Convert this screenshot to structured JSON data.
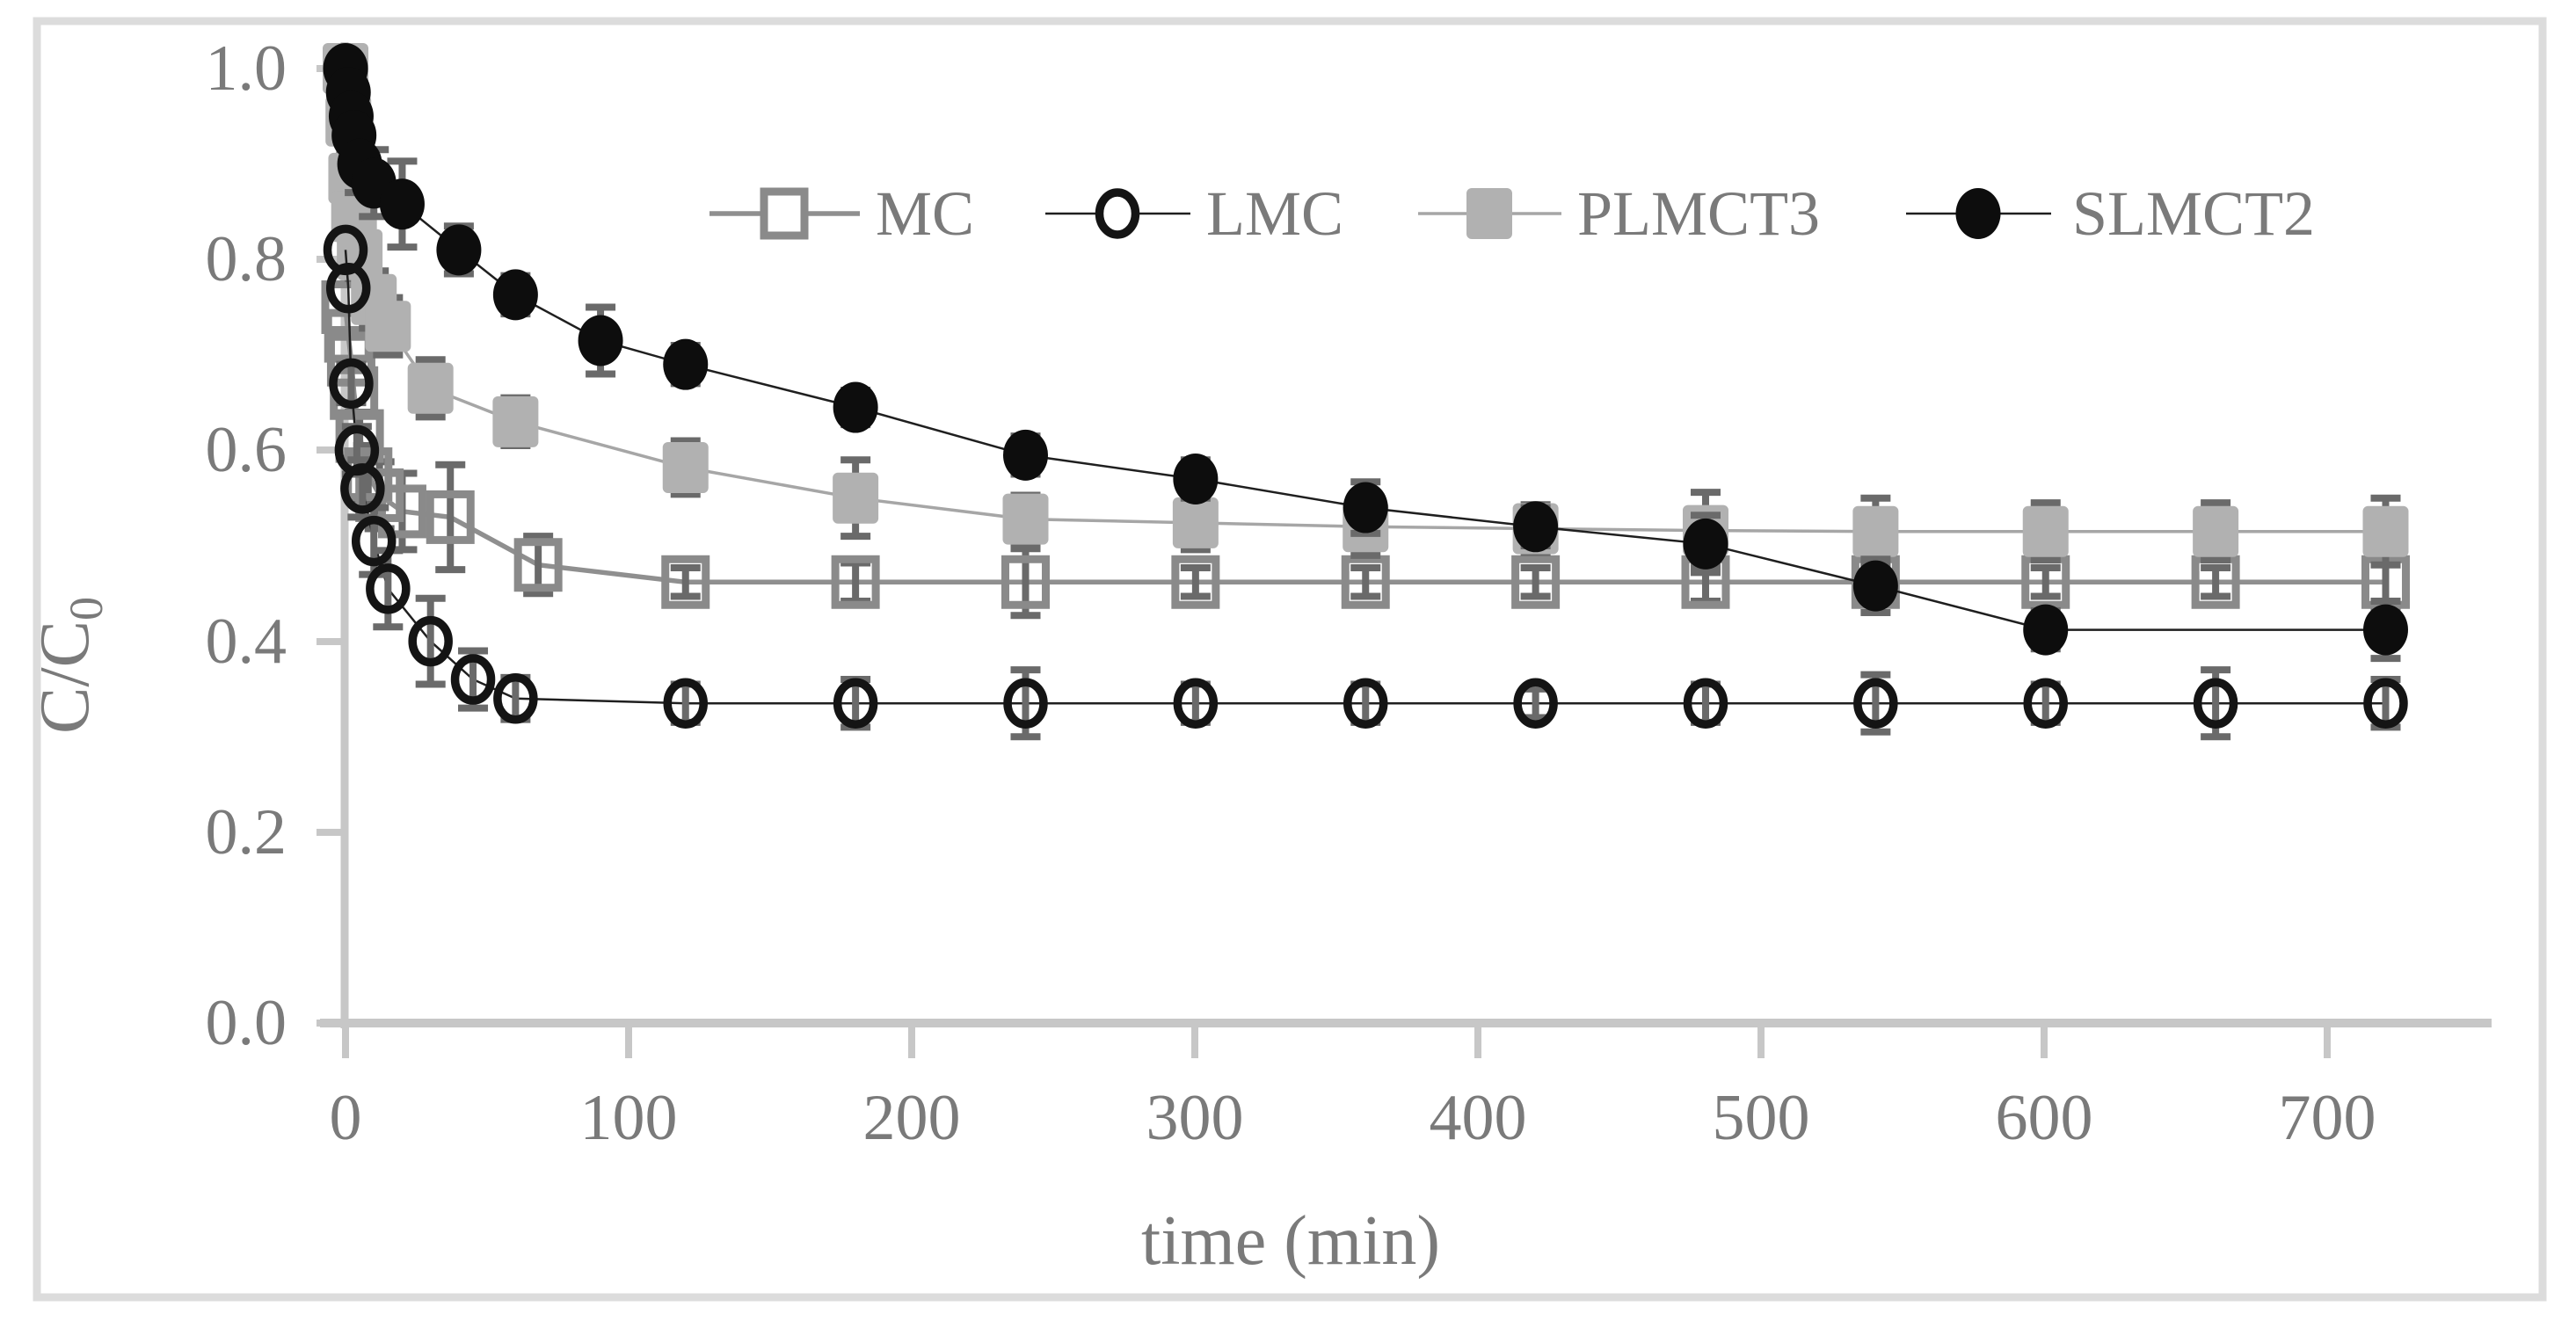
{
  "chart_data": {
    "type": "scatter",
    "title": "",
    "xlabel": "time (min)",
    "ylabel": "C/C0",
    "ylabel_main": "C/C",
    "ylabel_sub": "0",
    "xlim": [
      -10,
      755
    ],
    "ylim": [
      0.0,
      1.05
    ],
    "xticks": [
      0,
      100,
      200,
      300,
      400,
      500,
      600,
      700
    ],
    "ytick_labels": [
      "1.0",
      "0.8",
      "0.6",
      "0.4",
      "0.2",
      "0.0"
    ],
    "grid": false,
    "legend_position": "top-center",
    "error_bar_color": "#6a6a6a",
    "axis_color": "#c7c7c7",
    "frame_color": "#dcdcdc",
    "text_color": "#7a7a7a",
    "z_order": [
      0,
      2,
      1,
      3
    ],
    "series": [
      {
        "name": "MC",
        "marker": "open-square",
        "color": "#8a8a8a",
        "line_color": "#8f8f8f",
        "line_width": 5.5,
        "points_format": "[time_min, C_over_C0, error]",
        "points": [
          [
            0,
            0.75,
            0
          ],
          [
            1,
            0.72,
            0
          ],
          [
            2,
            0.695,
            0
          ],
          [
            3,
            0.66,
            0
          ],
          [
            5,
            0.615,
            0.025
          ],
          [
            8,
            0.575,
            0.03
          ],
          [
            12,
            0.553,
            0.035
          ],
          [
            20,
            0.536,
            0.04
          ],
          [
            37,
            0.53,
            0.055
          ],
          [
            68,
            0.48,
            0.03
          ],
          [
            120,
            0.462,
            0.015
          ],
          [
            180,
            0.462,
            0.02
          ],
          [
            240,
            0.462,
            0.035
          ],
          [
            300,
            0.462,
            0.015
          ],
          [
            360,
            0.462,
            0.015
          ],
          [
            420,
            0.462,
            0.015
          ],
          [
            480,
            0.462,
            0.02
          ],
          [
            540,
            0.462,
            0.02
          ],
          [
            600,
            0.462,
            0.015
          ],
          [
            660,
            0.462,
            0.015
          ],
          [
            720,
            0.462,
            0.03
          ]
        ]
      },
      {
        "name": "LMC",
        "marker": "open-circle",
        "color": "#141414",
        "line_color": "#1f1f1f",
        "line_width": 2.5,
        "points_format": "[time_min, C_over_C0, error]",
        "points": [
          [
            0,
            0.81,
            0
          ],
          [
            1,
            0.77,
            0
          ],
          [
            2,
            0.67,
            0.02
          ],
          [
            4,
            0.6,
            0.025
          ],
          [
            6,
            0.56,
            0.03
          ],
          [
            10,
            0.505,
            0.035
          ],
          [
            15,
            0.455,
            0.04
          ],
          [
            30,
            0.4,
            0.045
          ],
          [
            45,
            0.36,
            0.03
          ],
          [
            60,
            0.34,
            0.022
          ],
          [
            120,
            0.335,
            0.02
          ],
          [
            180,
            0.335,
            0.025
          ],
          [
            240,
            0.335,
            0.035
          ],
          [
            300,
            0.335,
            0.02
          ],
          [
            360,
            0.335,
            0.02
          ],
          [
            420,
            0.335,
            0.015
          ],
          [
            480,
            0.335,
            0.02
          ],
          [
            540,
            0.335,
            0.03
          ],
          [
            600,
            0.335,
            0.02
          ],
          [
            660,
            0.335,
            0.035
          ],
          [
            720,
            0.335,
            0.025
          ]
        ]
      },
      {
        "name": "PLMCT3",
        "marker": "filled-square",
        "color": "#b1b1b1",
        "line_color": "#a6a6a6",
        "line_width": 3.5,
        "points_format": "[time_min, C_over_C0, error]",
        "points": [
          [
            0,
            1.0,
            0
          ],
          [
            1,
            0.945,
            0
          ],
          [
            2,
            0.885,
            0.025
          ],
          [
            3,
            0.845,
            0.02
          ],
          [
            5,
            0.805,
            0.025
          ],
          [
            10,
            0.758,
            0.03
          ],
          [
            15,
            0.73,
            0.03
          ],
          [
            30,
            0.665,
            0.03
          ],
          [
            60,
            0.63,
            0.025
          ],
          [
            120,
            0.582,
            0.028
          ],
          [
            180,
            0.55,
            0.04
          ],
          [
            240,
            0.528,
            0.025
          ],
          [
            300,
            0.524,
            0.028
          ],
          [
            360,
            0.52,
            0.03
          ],
          [
            420,
            0.518,
            0.025
          ],
          [
            480,
            0.516,
            0.04
          ],
          [
            540,
            0.515,
            0.035
          ],
          [
            600,
            0.515,
            0.03
          ],
          [
            660,
            0.515,
            0.03
          ],
          [
            720,
            0.515,
            0.035
          ]
        ]
      },
      {
        "name": "SLMCT2",
        "marker": "filled-circle",
        "color": "#0d0d0d",
        "line_color": "#1f1f1f",
        "line_width": 2.5,
        "points_format": "[time_min, C_over_C0, error]",
        "points": [
          [
            0,
            1.0,
            0
          ],
          [
            1,
            0.975,
            0
          ],
          [
            2,
            0.95,
            0
          ],
          [
            3,
            0.93,
            0
          ],
          [
            5,
            0.9,
            0.03
          ],
          [
            10,
            0.88,
            0.035
          ],
          [
            20,
            0.858,
            0.045
          ],
          [
            40,
            0.81,
            0.025
          ],
          [
            60,
            0.763,
            0.02
          ],
          [
            90,
            0.715,
            0.035
          ],
          [
            120,
            0.69,
            0.02
          ],
          [
            180,
            0.645,
            0.018
          ],
          [
            240,
            0.595,
            0.02
          ],
          [
            300,
            0.57,
            0.02
          ],
          [
            360,
            0.54,
            0.027
          ],
          [
            420,
            0.52,
            0.02
          ],
          [
            480,
            0.502,
            0.03
          ],
          [
            540,
            0.458,
            0.028
          ],
          [
            600,
            0.412,
            0.02
          ],
          [
            720,
            0.412,
            0.03
          ]
        ]
      }
    ]
  }
}
